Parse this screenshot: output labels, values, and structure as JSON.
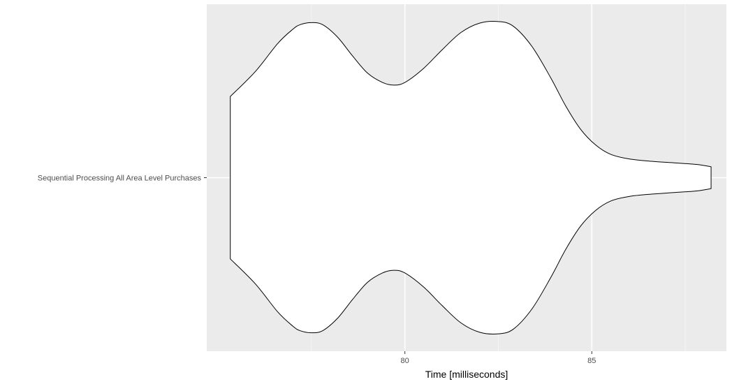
{
  "chart_data": {
    "type": "violin",
    "orientation": "horizontal",
    "title": "",
    "xlabel": "Time [milliseconds]",
    "ylabel": "",
    "xlim": [
      74.7,
      88.6
    ],
    "x_major_ticks": [
      80,
      85
    ],
    "x_minor_ticks": [
      77.5,
      82.5,
      87.5
    ],
    "grid": true,
    "legend": "none",
    "categories": [
      "Sequential Processing All Area Level Purchases"
    ],
    "series": [
      {
        "category": "Sequential Processing All Area Level Purchases",
        "min": 75.33,
        "max": 88.19,
        "density_profile": [
          {
            "x": 75.33,
            "w": 0.52
          },
          {
            "x": 76.0,
            "w": 0.68
          },
          {
            "x": 76.6,
            "w": 0.86
          },
          {
            "x": 77.0,
            "w": 0.95
          },
          {
            "x": 77.2,
            "w": 0.98
          },
          {
            "x": 77.5,
            "w": 0.993
          },
          {
            "x": 77.8,
            "w": 0.98
          },
          {
            "x": 78.2,
            "w": 0.9
          },
          {
            "x": 78.6,
            "w": 0.78
          },
          {
            "x": 79.0,
            "w": 0.67
          },
          {
            "x": 79.4,
            "w": 0.61
          },
          {
            "x": 79.7,
            "w": 0.593
          },
          {
            "x": 80.0,
            "w": 0.61
          },
          {
            "x": 80.5,
            "w": 0.7
          },
          {
            "x": 81.0,
            "w": 0.82
          },
          {
            "x": 81.5,
            "w": 0.93
          },
          {
            "x": 82.0,
            "w": 0.99
          },
          {
            "x": 82.5,
            "w": 1.0
          },
          {
            "x": 82.9,
            "w": 0.97
          },
          {
            "x": 83.4,
            "w": 0.84
          },
          {
            "x": 83.9,
            "w": 0.64
          },
          {
            "x": 84.3,
            "w": 0.46
          },
          {
            "x": 84.7,
            "w": 0.31
          },
          {
            "x": 85.1,
            "w": 0.21
          },
          {
            "x": 85.5,
            "w": 0.15
          },
          {
            "x": 86.0,
            "w": 0.12
          },
          {
            "x": 86.6,
            "w": 0.105
          },
          {
            "x": 87.2,
            "w": 0.095
          },
          {
            "x": 87.8,
            "w": 0.085
          },
          {
            "x": 88.19,
            "w": 0.07
          }
        ]
      }
    ],
    "colors": {
      "panel": "#ebebeb",
      "grid_major": "#ffffff",
      "grid_minor": "#f5f5f5",
      "violin_fill": "#ffffff",
      "violin_stroke": "#000000",
      "tick": "#333333"
    }
  }
}
